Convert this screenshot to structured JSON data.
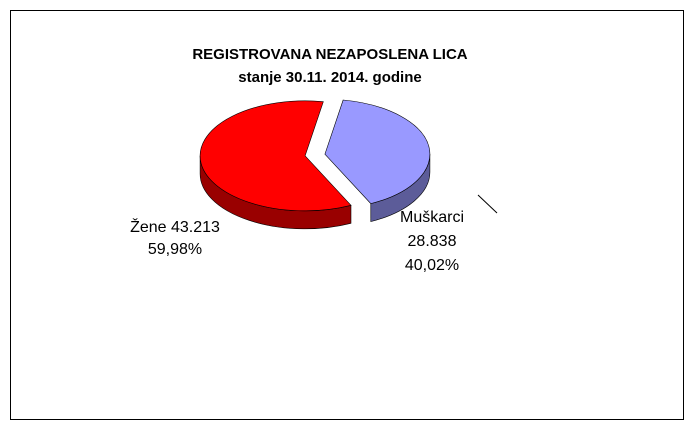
{
  "chart_data": {
    "type": "pie",
    "title": "REGISTROVANA NEZAPOSLENA LICA",
    "subtitle": "stanje 30.11. 2014. godine",
    "categories": [
      "Žene",
      "Muškarci"
    ],
    "values": [
      43213,
      28838
    ],
    "value_labels": [
      "43.213",
      "28.838"
    ],
    "percentages": [
      59.98,
      40.02
    ],
    "percentage_labels": [
      "59,98%",
      "40,02%"
    ],
    "colors": [
      "#ff0000",
      "#9999ff"
    ]
  }
}
